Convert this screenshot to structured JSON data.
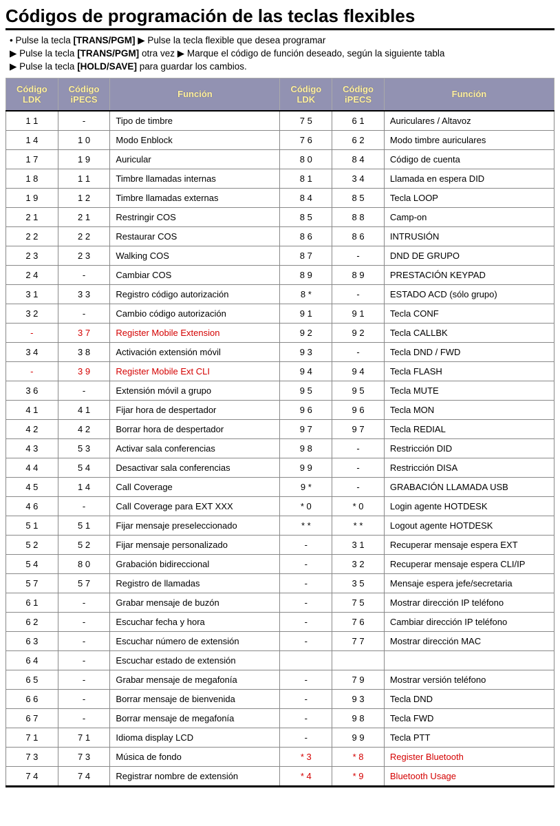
{
  "title": "Códigos de programación de las teclas flexibles",
  "instructions": {
    "line1_a": "Pulse la tecla ",
    "line1_key1": "[TRANS/PGM]",
    "line1_b": " ▶  Pulse la tecla flexible que desea programar",
    "line2_a": "▶ Pulse la tecla ",
    "line2_key": "[TRANS/PGM]",
    "line2_b": " otra vez ▶ Marque el código de función deseado, según la siguiente tabla",
    "line3_a": "▶ Pulse la tecla ",
    "line3_key": "[HOLD/SAVE]",
    "line3_b": " para guardar los cambios."
  },
  "headers": {
    "ldk": "Código LDK",
    "ipecs": "Código iPECS",
    "func": "Función"
  },
  "rows": [
    {
      "l1": "1 1",
      "i1": "-",
      "f1": "Tipo de timbre",
      "l2": "7 5",
      "i2": "6 1",
      "f2": "Auriculares / Altavoz"
    },
    {
      "l1": "1 4",
      "i1": "1 0",
      "f1": "Modo Enblock",
      "l2": "7 6",
      "i2": "6 2",
      "f2": "Modo timbre auriculares"
    },
    {
      "l1": "1 7",
      "i1": "1 9",
      "f1": "Auricular",
      "l2": "8 0",
      "i2": "8 4",
      "f2": "Código de cuenta"
    },
    {
      "l1": "1 8",
      "i1": "1 1",
      "f1": "Timbre llamadas internas",
      "l2": "8 1",
      "i2": "3 4",
      "f2": "Llamada en espera DID"
    },
    {
      "l1": "1 9",
      "i1": "1 2",
      "f1": "Timbre llamadas externas",
      "l2": "8 4",
      "i2": "8 5",
      "f2": "Tecla LOOP"
    },
    {
      "l1": "2 1",
      "i1": "2 1",
      "f1": "Restringir COS",
      "l2": "8 5",
      "i2": "8 8",
      "f2": "Camp-on"
    },
    {
      "l1": "2 2",
      "i1": "2 2",
      "f1": "Restaurar COS",
      "l2": "8 6",
      "i2": "8 6",
      "f2": "INTRUSIÓN"
    },
    {
      "l1": "2 3",
      "i1": "2 3",
      "f1": "Walking COS",
      "l2": "8 7",
      "i2": "-",
      "f2": "DND DE GRUPO"
    },
    {
      "l1": "2 4",
      "i1": "-",
      "f1": "Cambiar COS",
      "l2": "8 9",
      "i2": "8 9",
      "f2": "PRESTACIÓN KEYPAD"
    },
    {
      "l1": "3 1",
      "i1": "3 3",
      "f1": "Registro código autorización",
      "l2": "8 *",
      "i2": "-",
      "f2": "ESTADO ACD (sólo grupo)"
    },
    {
      "l1": "3 2",
      "i1": "-",
      "f1": "Cambio código autorización",
      "l2": "9 1",
      "i2": "9 1",
      "f2": "Tecla CONF"
    },
    {
      "l1": "-",
      "i1": "3 7",
      "f1": "Register Mobile Extension",
      "red1": true,
      "l2": "9 2",
      "i2": "9 2",
      "f2": "Tecla CALLBK"
    },
    {
      "l1": "3 4",
      "i1": "3 8",
      "f1": "Activación extensión móvil",
      "l2": "9 3",
      "i2": "-",
      "f2": "Tecla DND / FWD"
    },
    {
      "l1": "-",
      "i1": "3 9",
      "f1": "Register Mobile Ext CLI",
      "red1": true,
      "l2": "9 4",
      "i2": "9 4",
      "f2": "Tecla FLASH"
    },
    {
      "l1": "3 6",
      "i1": "-",
      "f1": "Extensión móvil a grupo",
      "l2": "9 5",
      "i2": "9 5",
      "f2": "Tecla MUTE"
    },
    {
      "l1": "4 1",
      "i1": "4 1",
      "f1": "Fijar hora de despertador",
      "l2": "9 6",
      "i2": "9 6",
      "f2": "Tecla MON"
    },
    {
      "l1": "4 2",
      "i1": "4 2",
      "f1": "Borrar hora de despertador",
      "l2": "9 7",
      "i2": "9 7",
      "f2": "Tecla REDIAL"
    },
    {
      "l1": "4 3",
      "i1": "5 3",
      "f1": "Activar sala conferencias",
      "l2": "9 8",
      "i2": "-",
      "f2": "Restricción DID"
    },
    {
      "l1": "4 4",
      "i1": "5 4",
      "f1": "Desactivar sala conferencias",
      "l2": "9 9",
      "i2": "-",
      "f2": "Restricción DISA"
    },
    {
      "l1": "4 5",
      "i1": "1 4",
      "f1": "Call Coverage",
      "l2": "9 *",
      "i2": "-",
      "f2": "GRABACIÓN LLAMADA USB"
    },
    {
      "l1": "4 6",
      "i1": "-",
      "f1": "Call Coverage para EXT XXX",
      "l2": "* 0",
      "i2": "* 0",
      "f2": "Login agente HOTDESK"
    },
    {
      "l1": "5 1",
      "i1": "5 1",
      "f1": "Fijar mensaje preseleccionado",
      "l2": "* *",
      "i2": "* *",
      "f2": "Logout agente HOTDESK"
    },
    {
      "l1": "5 2",
      "i1": "5 2",
      "f1": "Fijar mensaje personalizado",
      "l2": "-",
      "i2": "3 1",
      "f2": "Recuperar mensaje espera EXT"
    },
    {
      "l1": "5 4",
      "i1": "8 0",
      "f1": "Grabación bidireccional",
      "l2": "-",
      "i2": "3 2",
      "f2": "Recuperar mensaje espera CLI/IP"
    },
    {
      "l1": "5 7",
      "i1": "5 7",
      "f1": "Registro de llamadas",
      "l2": "-",
      "i2": "3 5",
      "f2": "Mensaje espera jefe/secretaria"
    },
    {
      "l1": "6 1",
      "i1": "-",
      "f1": "Grabar mensaje de buzón",
      "l2": "-",
      "i2": "7 5",
      "f2": "Mostrar dirección IP teléfono"
    },
    {
      "l1": "6 2",
      "i1": "-",
      "f1": "Escuchar fecha y hora",
      "l2": "-",
      "i2": "7 6",
      "f2": "Cambiar dirección IP teléfono"
    },
    {
      "l1": "6 3",
      "i1": "-",
      "f1": "Escuchar número de extensión",
      "l2": "-",
      "i2": "7 7",
      "f2": "Mostrar dirección MAC"
    },
    {
      "l1": "6 4",
      "i1": "-",
      "f1": "Escuchar estado de extensión",
      "l2": "",
      "i2": "",
      "f2": ""
    },
    {
      "l1": "6 5",
      "i1": "-",
      "f1": "Grabar mensaje de megafonía",
      "l2": "-",
      "i2": "7 9",
      "f2": "Mostrar versión teléfono"
    },
    {
      "l1": "6 6",
      "i1": "-",
      "f1": "Borrar mensaje de bienvenida",
      "l2": "-",
      "i2": "9 3",
      "f2": "Tecla DND"
    },
    {
      "l1": "6 7",
      "i1": "-",
      "f1": "Borrar mensaje de megafonía",
      "l2": "-",
      "i2": "9 8",
      "f2": "Tecla FWD"
    },
    {
      "l1": "7 1",
      "i1": "7 1",
      "f1": "Idioma display LCD",
      "l2": "-",
      "i2": "9 9",
      "f2": "Tecla PTT"
    },
    {
      "l1": "7 3",
      "i1": "7 3",
      "f1": "Música de fondo",
      "l2": "* 3",
      "i2": "* 8",
      "f2": "Register Bluetooth",
      "red2": true
    },
    {
      "l1": "7 4",
      "i1": "7 4",
      "f1": "Registrar nombre de extensión",
      "l2": "* 4",
      "i2": "* 9",
      "f2": "Bluetooth Usage",
      "red2": true
    }
  ]
}
